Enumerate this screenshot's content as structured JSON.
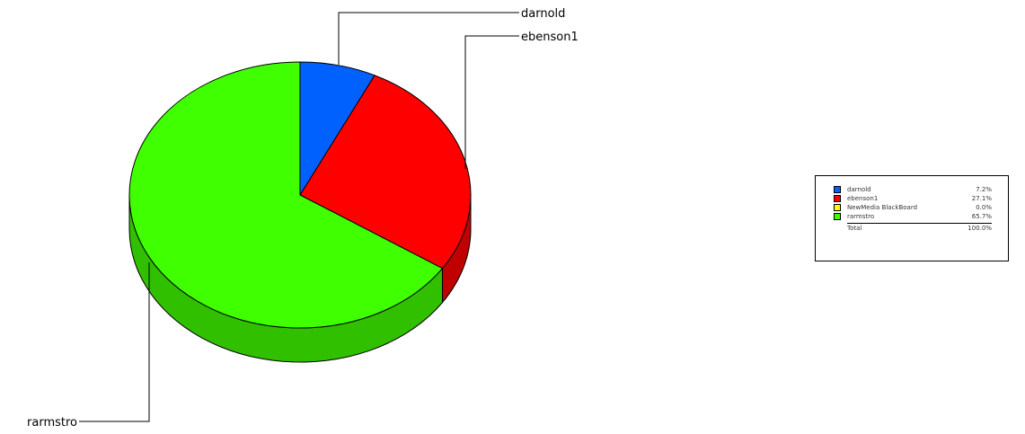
{
  "chart_data": {
    "type": "pie",
    "style": "3d",
    "slices": [
      {
        "label": "darnold",
        "value": 7.2,
        "display": "7.2%",
        "color": "#0061ff",
        "side_color": "#0048c0"
      },
      {
        "label": "ebenson1",
        "value": 27.1,
        "display": "27.1%",
        "color": "#ff0000",
        "side_color": "#c00000"
      },
      {
        "label": "NewMedia BlackBoard",
        "value": 0.0,
        "display": "0.0%",
        "color": "#ffff00",
        "side_color": "#c0c000"
      },
      {
        "label": "rarmstro",
        "value": 65.7,
        "display": "65.7%",
        "color": "#40ff00",
        "side_color": "#30c000"
      }
    ],
    "callouts": [
      "darnold",
      "ebenson1",
      "rarmstro"
    ],
    "legend": {
      "placement": "right",
      "total_label": "Total",
      "total_value": "100.0%"
    }
  }
}
